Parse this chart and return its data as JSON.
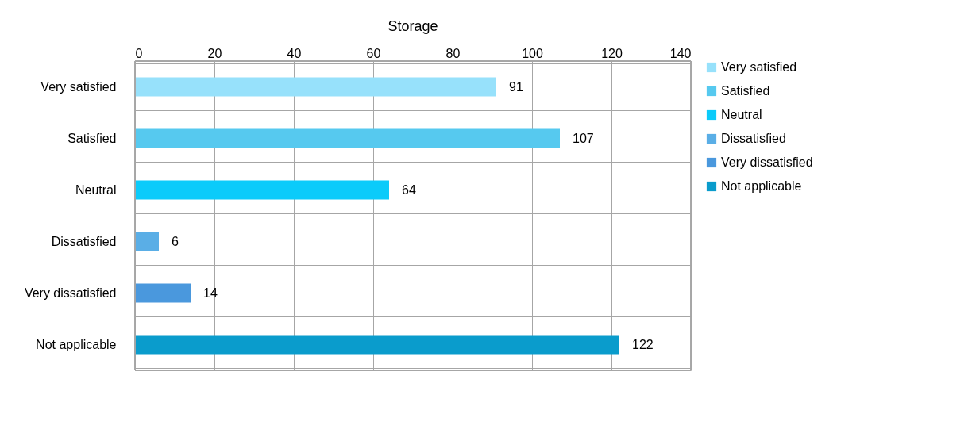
{
  "chart_data": {
    "type": "bar",
    "orientation": "horizontal",
    "stacked": true,
    "title": "Storage",
    "categories": [
      "Very satisfied",
      "Satisfied",
      "Neutral",
      "Dissatisfied",
      "Very dissatisfied",
      "Not applicable"
    ],
    "series": [
      {
        "name": "Very satisfied",
        "color": "#97e1fb",
        "values": [
          91,
          null,
          null,
          null,
          null,
          null
        ]
      },
      {
        "name": "Satisfied",
        "color": "#56c9ef",
        "values": [
          null,
          107,
          null,
          null,
          null,
          null
        ]
      },
      {
        "name": "Neutral",
        "color": "#0bcbfa",
        "values": [
          null,
          null,
          64,
          null,
          null,
          null
        ]
      },
      {
        "name": "Dissatisfied",
        "color": "#5aaee6",
        "values": [
          null,
          null,
          null,
          6,
          null,
          null
        ]
      },
      {
        "name": "Very dissatisfied",
        "color": "#4a98dd",
        "values": [
          null,
          null,
          null,
          null,
          14,
          null
        ]
      },
      {
        "name": "Not applicable",
        "color": "#0a9ccc",
        "values": [
          null,
          null,
          null,
          null,
          null,
          122
        ]
      }
    ],
    "xlim": [
      0,
      140
    ],
    "xticks": [
      0,
      20,
      40,
      60,
      80,
      100,
      120,
      140
    ],
    "grid": true,
    "legend": "right",
    "data_labels": true
  }
}
